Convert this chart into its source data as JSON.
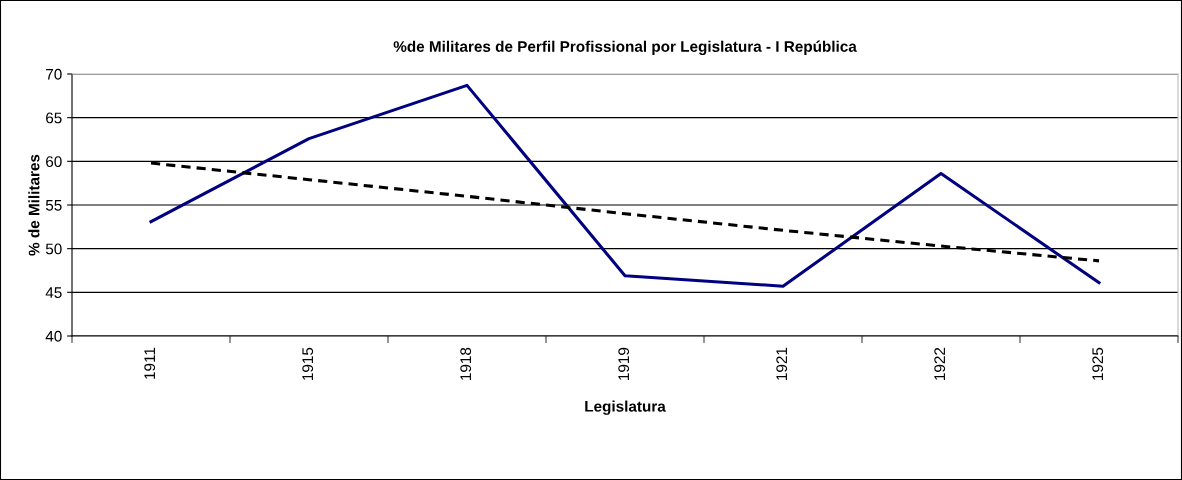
{
  "chart_data": {
    "type": "line",
    "title": "%de Militares de Perfil Profissional por Legislatura - I República",
    "xlabel": "Legislatura",
    "ylabel": "% de Militares",
    "categories": [
      "1911",
      "1915",
      "1918",
      "1919",
      "1921",
      "1922",
      "1925"
    ],
    "series": [
      {
        "color": "#000080",
        "line_style": "solid",
        "values": [
          53.1,
          62.6,
          68.7,
          46.9,
          45.7,
          58.6,
          46.1
        ]
      },
      {
        "color": "#000000",
        "line_style": "dashed",
        "values": [
          59.8,
          57.9,
          56.0,
          54.0,
          52.1,
          50.3,
          48.6
        ]
      }
    ],
    "ylim": [
      40,
      70
    ],
    "yticks": [
      40,
      45,
      50,
      55,
      60,
      65,
      70
    ],
    "grid": "y",
    "legend": false,
    "marker": "none"
  }
}
